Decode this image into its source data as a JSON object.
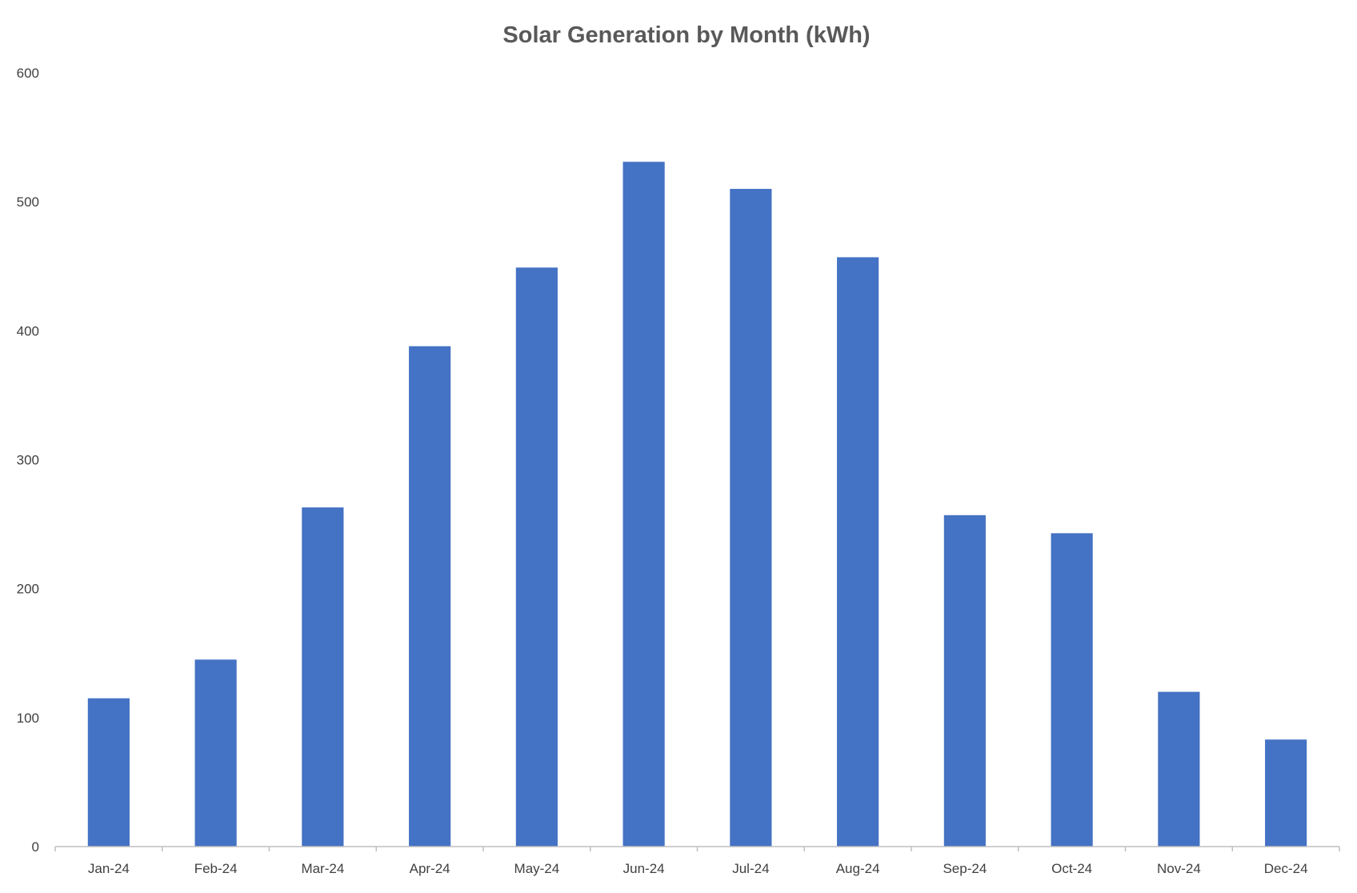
{
  "chart_data": {
    "type": "bar",
    "title": "Solar Generation by Month (kWh)",
    "categories": [
      "Jan-24",
      "Feb-24",
      "Mar-24",
      "Apr-24",
      "May-24",
      "Jun-24",
      "Jul-24",
      "Aug-24",
      "Sep-24",
      "Oct-24",
      "Nov-24",
      "Dec-24"
    ],
    "values": [
      115,
      145,
      263,
      388,
      449,
      531,
      510,
      457,
      257,
      243,
      120,
      83
    ],
    "ylim": [
      0,
      600
    ],
    "yticks": [
      "0",
      "100",
      "200",
      "300",
      "400",
      "500",
      "600"
    ],
    "grid": false,
    "legend": "none",
    "bar_color": "#4472C4",
    "xlabel": "",
    "ylabel": ""
  }
}
